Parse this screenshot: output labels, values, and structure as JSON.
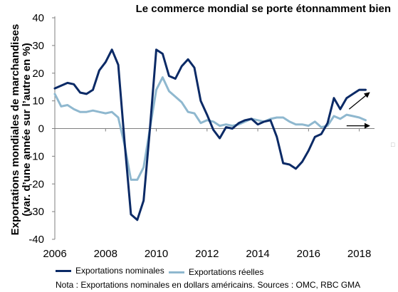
{
  "chart_data": {
    "type": "line",
    "title": "Le commerce mondial se porte étonnamment bien",
    "ylabel": "Exportations mondiales de marchandises (var. d’une année sur l’autre en %)",
    "xlabel": "",
    "xlim": [
      2006,
      2018.6
    ],
    "ylim": [
      -40,
      40
    ],
    "yticks": [
      40,
      30,
      20,
      10,
      0,
      -10,
      -20,
      -30,
      -40
    ],
    "xticks": [
      2006,
      2008,
      2010,
      2012,
      2014,
      2016,
      2018
    ],
    "grid": false,
    "legend_position": "bottom",
    "series": [
      {
        "name": "Exportations nominales",
        "color": "#0b2a66",
        "x": [
          2006.0,
          2006.25,
          2006.5,
          2006.75,
          2007.0,
          2007.25,
          2007.5,
          2007.75,
          2008.0,
          2008.25,
          2008.5,
          2008.75,
          2009.0,
          2009.25,
          2009.5,
          2009.75,
          2010.0,
          2010.25,
          2010.5,
          2010.75,
          2011.0,
          2011.25,
          2011.5,
          2011.75,
          2012.0,
          2012.25,
          2012.5,
          2012.75,
          2013.0,
          2013.25,
          2013.5,
          2013.75,
          2014.0,
          2014.25,
          2014.5,
          2014.75,
          2015.0,
          2015.25,
          2015.5,
          2015.75,
          2016.0,
          2016.25,
          2016.5,
          2016.75,
          2017.0,
          2017.25,
          2017.5,
          2017.75,
          2018.0,
          2018.25
        ],
        "values": [
          14.5,
          15.5,
          16.5,
          16.0,
          13.0,
          12.5,
          14.0,
          21.0,
          24.0,
          28.5,
          23.0,
          -5.0,
          -31.0,
          -33.0,
          -26.0,
          0.0,
          28.5,
          27.0,
          19.0,
          18.0,
          22.5,
          25.0,
          22.0,
          10.0,
          5.0,
          -0.5,
          -3.5,
          0.5,
          0.0,
          2.0,
          3.0,
          3.5,
          1.5,
          2.5,
          3.0,
          -3.0,
          -12.5,
          -13.0,
          -14.5,
          -12.0,
          -8.0,
          -3.0,
          -2.0,
          2.0,
          11.0,
          7.0,
          11.0,
          12.5,
          14.0,
          14.0
        ]
      },
      {
        "name": "Exportations réelles",
        "color": "#8fb8cf",
        "x": [
          2006.0,
          2006.25,
          2006.5,
          2006.75,
          2007.0,
          2007.25,
          2007.5,
          2007.75,
          2008.0,
          2008.25,
          2008.5,
          2008.75,
          2009.0,
          2009.25,
          2009.5,
          2009.75,
          2010.0,
          2010.25,
          2010.5,
          2010.75,
          2011.0,
          2011.25,
          2011.5,
          2011.75,
          2012.0,
          2012.25,
          2012.5,
          2012.75,
          2013.0,
          2013.25,
          2013.5,
          2013.75,
          2014.0,
          2014.25,
          2014.5,
          2014.75,
          2015.0,
          2015.25,
          2015.5,
          2015.75,
          2016.0,
          2016.25,
          2016.5,
          2016.75,
          2017.0,
          2017.25,
          2017.5,
          2017.75,
          2018.0,
          2018.25
        ],
        "values": [
          12.5,
          8.0,
          8.5,
          7.0,
          6.0,
          6.0,
          6.5,
          6.0,
          5.5,
          6.0,
          4.0,
          -6.0,
          -18.5,
          -18.5,
          -14.0,
          0.0,
          14.0,
          18.5,
          13.5,
          11.5,
          9.5,
          6.0,
          5.5,
          2.0,
          3.0,
          2.5,
          1.0,
          1.5,
          1.0,
          1.5,
          2.5,
          3.5,
          3.0,
          2.5,
          3.5,
          4.0,
          4.0,
          2.5,
          1.5,
          1.5,
          1.0,
          2.5,
          0.5,
          1.0,
          4.5,
          3.5,
          5.0,
          4.5,
          4.0,
          3.0
        ]
      }
    ],
    "annotations": [
      {
        "type": "arrow",
        "from": [
          2017.6,
          7.0
        ],
        "to": [
          2018.4,
          13.0
        ]
      },
      {
        "type": "arrow",
        "from": [
          2017.5,
          1.0
        ],
        "to": [
          2018.4,
          1.0
        ]
      }
    ]
  },
  "note": "Nota : Exportations nominales en dollars américains. Sources : OMC, RBC GMA"
}
